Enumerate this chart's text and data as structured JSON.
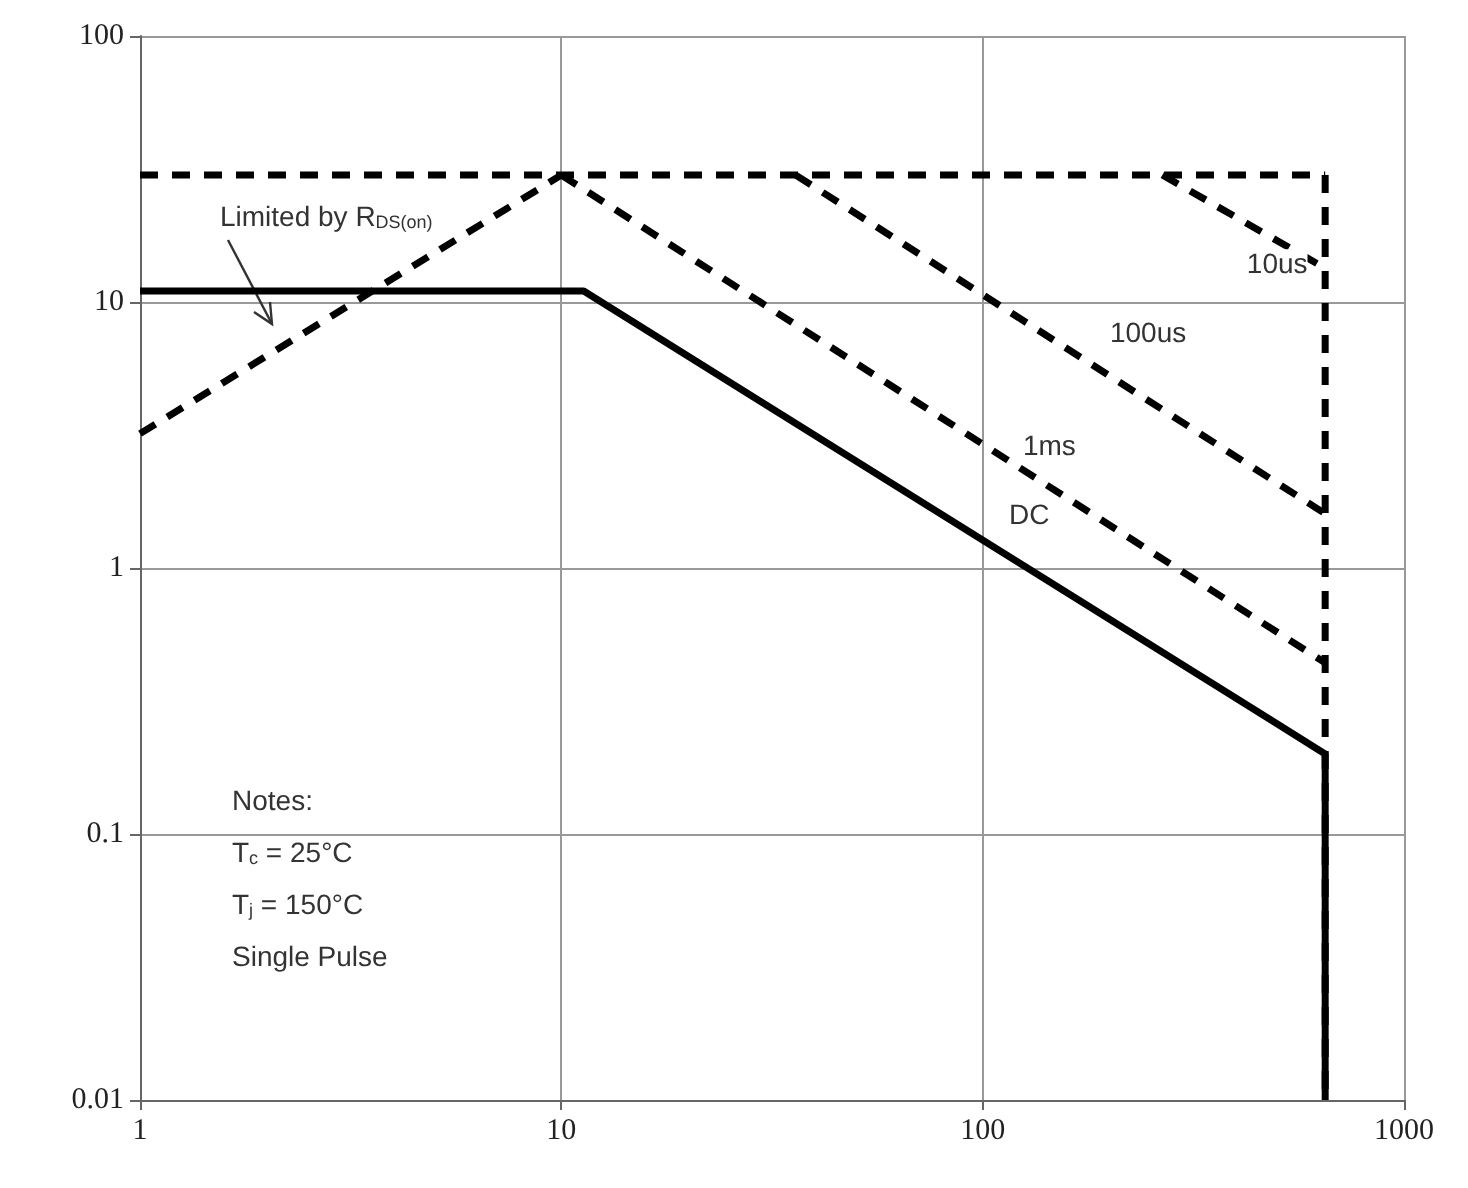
{
  "chart_data": {
    "type": "line",
    "xlim": [
      1,
      1000
    ],
    "ylim": [
      0.01,
      100
    ],
    "xticks": [
      1,
      10,
      100,
      1000
    ],
    "yticks": [
      0.01,
      0.1,
      1,
      10,
      100
    ],
    "log": "xy",
    "grid": true,
    "marker": "none",
    "series": [
      {
        "color": "#000000",
        "line_style": "dashed",
        "x": [
          1,
          10
        ],
        "values": [
          3.2,
          30
        ]
      },
      {
        "color": "#000000",
        "line_style": "dashed",
        "x": [
          1,
          650
        ],
        "values": [
          30,
          30
        ]
      },
      {
        "color": "#000000",
        "line_style": "dashed",
        "x": [
          267,
          650
        ],
        "values": [
          30,
          13.4
        ]
      },
      {
        "color": "#000000",
        "line_style": "dashed",
        "x": [
          36,
          650
        ],
        "values": [
          30,
          1.6
        ]
      },
      {
        "color": "#000000",
        "line_style": "dashed",
        "x": [
          10,
          650
        ],
        "values": [
          30,
          0.44
        ]
      },
      {
        "color": "#000000",
        "line_style": "dashed",
        "x": [
          650,
          650
        ],
        "values": [
          30,
          0.01
        ]
      },
      {
        "color": "#000000",
        "line_style": "solid",
        "x": [
          1,
          11.3,
          650,
          650
        ],
        "values": [
          11,
          11,
          0.2,
          0.01
        ]
      }
    ],
    "annotations": [
      {
        "text": "10us",
        "x": 500,
        "y": 14
      },
      {
        "text": "100us",
        "x": 247,
        "y": 7.7
      },
      {
        "text": "1ms",
        "x": 144,
        "y": 2.9
      },
      {
        "text": "DC",
        "x": 129,
        "y": 1.6
      },
      "Limited by R$_{DS(on)}$",
      "Notes:",
      "T$_{c}$ = 25°C",
      "T$_{j}$ = 150°C",
      "Single Pulse"
    ]
  }
}
